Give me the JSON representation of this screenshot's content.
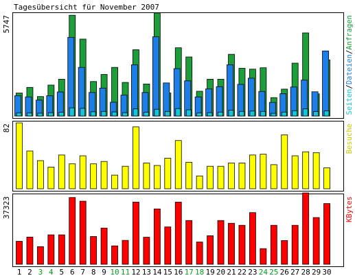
{
  "title": "Tagesübersicht für November 2007",
  "colors": {
    "background": "#ffffff",
    "frame": "#000000",
    "requests": "#1e9e3a",
    "files": "#1e7ee8",
    "pages": "#16c6d8",
    "visits": "#ffff00",
    "kbytes": "#ff0000",
    "weekday_label": "#000000",
    "weekend_label": "#0a9a20"
  },
  "chart_data": [
    {
      "type": "bar",
      "id": "hits",
      "ymax": 5747,
      "ymax_label": "5747",
      "axis_label": {
        "parts": [
          {
            "text": "Seiten",
            "color": "#16c6d8"
          },
          {
            "text": "/",
            "color": "#000000"
          },
          {
            "text": "Dateien",
            "color": "#1e7ee8"
          },
          {
            "text": "/",
            "color": "#000000"
          },
          {
            "text": "Anfragen",
            "color": "#1e9e3a"
          }
        ]
      },
      "series": [
        {
          "name": "Anfragen",
          "color": "#1e9e3a",
          "values": [
            1300,
            1620,
            1100,
            1750,
            2080,
            5700,
            4350,
            1950,
            2350,
            2750,
            1900,
            3750,
            1810,
            5830,
            1300,
            3860,
            3340,
            1400,
            2080,
            2080,
            3490,
            2700,
            2650,
            2730,
            1040,
            1520,
            2990,
            4700,
            1250,
            3170
          ]
        },
        {
          "name": "Dateien",
          "color": "#1e7ee8",
          "values": [
            1150,
            1080,
            900,
            1150,
            1360,
            4450,
            2750,
            1330,
            1580,
            780,
            1180,
            2900,
            1330,
            4480,
            1870,
            2680,
            1990,
            1080,
            1540,
            1660,
            2900,
            1790,
            2140,
            1390,
            770,
            1260,
            1640,
            2030,
            1370,
            3680
          ]
        },
        {
          "name": "Seiten",
          "color": "#16c6d8",
          "values": [
            180,
            170,
            160,
            190,
            210,
            460,
            430,
            240,
            260,
            230,
            190,
            400,
            210,
            380,
            260,
            420,
            350,
            170,
            190,
            220,
            330,
            260,
            280,
            260,
            150,
            220,
            300,
            400,
            250,
            290
          ]
        }
      ]
    },
    {
      "type": "bar",
      "id": "visits",
      "ymax": 82,
      "ymax_label": "82",
      "axis_label": {
        "parts": [
          {
            "text": "Besuche",
            "color": "#c8c800"
          }
        ]
      },
      "series": [
        {
          "name": "Besuche",
          "color": "#ffff00",
          "values": [
            82,
            47,
            35,
            27,
            42,
            31,
            41,
            31,
            34,
            17,
            28,
            77,
            32,
            29,
            38,
            60,
            33,
            16,
            28,
            28,
            32,
            32,
            42,
            43,
            30,
            67,
            41,
            46,
            45,
            26
          ]
        }
      ]
    },
    {
      "type": "bar",
      "id": "kbytes",
      "ymax": 37323,
      "ymax_label": "37323",
      "axis_label": {
        "parts": [
          {
            "text": "KBytes",
            "color": "#ff0000"
          }
        ]
      },
      "series": [
        {
          "name": "KBytes",
          "color": "#ff0000",
          "values": [
            12500,
            14800,
            9600,
            16000,
            16000,
            36300,
            34300,
            15100,
            19700,
            10000,
            13000,
            33800,
            14700,
            30100,
            20300,
            33800,
            23800,
            12100,
            15500,
            23800,
            22300,
            21200,
            28100,
            8500,
            21200,
            12900,
            21200,
            38800,
            25400,
            33000
          ]
        }
      ]
    }
  ],
  "x_labels": [
    "1",
    "2",
    "3",
    "4",
    "5",
    "6",
    "7",
    "8",
    "9",
    "10",
    "11",
    "12",
    "13",
    "14",
    "15",
    "16",
    "17",
    "18",
    "19",
    "20",
    "21",
    "22",
    "23",
    "24",
    "25",
    "26",
    "27",
    "28",
    "29",
    "30"
  ],
  "weekend_days": [
    "3",
    "4",
    "10",
    "11",
    "17",
    "18",
    "24",
    "25"
  ]
}
